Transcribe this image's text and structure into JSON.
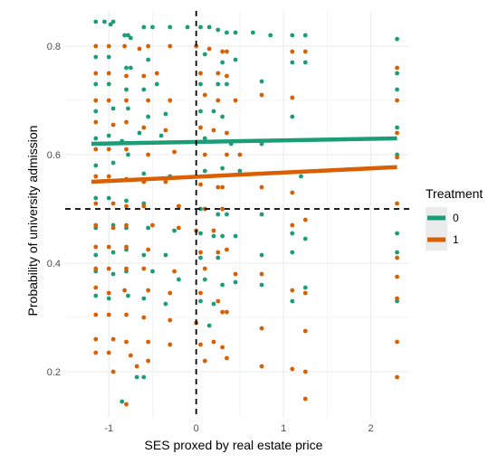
{
  "chart_data": {
    "type": "scatter",
    "xlabel": "SES proxed by real estate price",
    "ylabel": "Probability of university admission",
    "xlim": [
      -1.5,
      2.45
    ],
    "ylim": [
      0.115,
      0.865
    ],
    "x_ticks": [
      -1,
      0,
      1,
      2
    ],
    "x_tick_labels": [
      "-1",
      "0",
      "1",
      "2"
    ],
    "y_ticks": [
      0.2,
      0.4,
      0.6,
      0.8
    ],
    "y_tick_labels": [
      "0.2",
      "0.4",
      "0.6",
      "0.8"
    ],
    "grid": true,
    "reference_lines": {
      "vertical_x": 0,
      "horizontal_y": 0.5,
      "style": "dashed"
    },
    "legend": {
      "title": "Treatment",
      "position": "right",
      "entries": [
        "0",
        "1"
      ]
    },
    "series": [
      {
        "name": "0",
        "color": "#1b9e77",
        "points": [
          [
            -1.15,
            0.845
          ],
          [
            -1.05,
            0.845
          ],
          [
            -0.98,
            0.84
          ],
          [
            -0.95,
            0.845
          ],
          [
            -0.82,
            0.82
          ],
          [
            -0.78,
            0.82
          ],
          [
            -0.75,
            0.815
          ],
          [
            -0.6,
            0.835
          ],
          [
            -0.5,
            0.835
          ],
          [
            -0.3,
            0.835
          ],
          [
            -0.1,
            0.835
          ],
          [
            0.05,
            0.835
          ],
          [
            0.15,
            0.835
          ],
          [
            0.25,
            0.83
          ],
          [
            0.35,
            0.825
          ],
          [
            0.45,
            0.825
          ],
          [
            0.65,
            0.825
          ],
          [
            0.85,
            0.82
          ],
          [
            1.1,
            0.82
          ],
          [
            1.25,
            0.82
          ],
          [
            2.3,
            0.813
          ],
          [
            -1.15,
            0.78
          ],
          [
            -1.0,
            0.78
          ],
          [
            -0.8,
            0.76
          ],
          [
            -0.75,
            0.76
          ],
          [
            -0.55,
            0.775
          ],
          [
            0.1,
            0.785
          ],
          [
            0.3,
            0.77
          ],
          [
            0.45,
            0.775
          ],
          [
            1.1,
            0.77
          ],
          [
            1.25,
            0.77
          ],
          [
            2.3,
            0.75
          ],
          [
            -1.15,
            0.73
          ],
          [
            -1.0,
            0.73
          ],
          [
            -0.8,
            0.72
          ],
          [
            -0.6,
            0.72
          ],
          [
            -0.45,
            0.73
          ],
          [
            0.05,
            0.73
          ],
          [
            0.25,
            0.73
          ],
          [
            0.35,
            0.73
          ],
          [
            0.75,
            0.735
          ],
          [
            2.3,
            0.72
          ],
          [
            -1.15,
            0.68
          ],
          [
            -0.95,
            0.685
          ],
          [
            -0.78,
            0.685
          ],
          [
            -0.55,
            0.67
          ],
          [
            -0.35,
            0.675
          ],
          [
            0.05,
            0.68
          ],
          [
            0.2,
            0.68
          ],
          [
            0.3,
            0.67
          ],
          [
            1.1,
            0.67
          ],
          [
            2.3,
            0.65
          ],
          [
            -1.15,
            0.63
          ],
          [
            -1.0,
            0.635
          ],
          [
            -0.85,
            0.625
          ],
          [
            -0.65,
            0.64
          ],
          [
            -0.4,
            0.635
          ],
          [
            0.1,
            0.63
          ],
          [
            0.4,
            0.62
          ],
          [
            0.75,
            0.62
          ],
          [
            2.3,
            0.6
          ],
          [
            -1.15,
            0.58
          ],
          [
            -0.95,
            0.585
          ],
          [
            -0.78,
            0.6
          ],
          [
            -0.6,
            0.565
          ],
          [
            -0.3,
            0.56
          ],
          [
            0.1,
            0.57
          ],
          [
            0.3,
            0.575
          ],
          [
            0.5,
            0.57
          ],
          [
            1.2,
            0.56
          ],
          [
            -1.15,
            0.52
          ],
          [
            -1.0,
            0.52
          ],
          [
            -0.8,
            0.515
          ],
          [
            -0.6,
            0.51
          ],
          [
            -0.2,
            0.505
          ],
          [
            0.05,
            0.5
          ],
          [
            0.25,
            0.49
          ],
          [
            0.35,
            0.49
          ],
          [
            0.75,
            0.49
          ],
          [
            2.3,
            0.455
          ],
          [
            -1.15,
            0.465
          ],
          [
            -0.95,
            0.47
          ],
          [
            -0.8,
            0.465
          ],
          [
            -0.55,
            0.465
          ],
          [
            -0.25,
            0.46
          ],
          [
            0.05,
            0.455
          ],
          [
            0.2,
            0.45
          ],
          [
            0.3,
            0.45
          ],
          [
            0.45,
            0.45
          ],
          [
            1.1,
            0.455
          ],
          [
            1.25,
            0.445
          ],
          [
            2.3,
            0.42
          ],
          [
            -1.15,
            0.415
          ],
          [
            -0.95,
            0.42
          ],
          [
            -0.8,
            0.425
          ],
          [
            -0.6,
            0.415
          ],
          [
            -0.35,
            0.415
          ],
          [
            0.05,
            0.41
          ],
          [
            0.25,
            0.41
          ],
          [
            0.75,
            0.415
          ],
          [
            1.1,
            0.42
          ],
          [
            -1.15,
            0.385
          ],
          [
            -0.95,
            0.38
          ],
          [
            -0.8,
            0.385
          ],
          [
            -0.5,
            0.385
          ],
          [
            -0.2,
            0.37
          ],
          [
            0.1,
            0.37
          ],
          [
            0.3,
            0.36
          ],
          [
            0.45,
            0.365
          ],
          [
            0.75,
            0.36
          ],
          [
            1.25,
            0.355
          ],
          [
            -1.15,
            0.34
          ],
          [
            -1.0,
            0.335
          ],
          [
            -0.78,
            0.34
          ],
          [
            -0.6,
            0.335
          ],
          [
            -0.35,
            0.325
          ],
          [
            0.05,
            0.33
          ],
          [
            0.2,
            0.325
          ],
          [
            1.1,
            0.33
          ],
          [
            2.3,
            0.33
          ],
          [
            -0.85,
            0.145
          ],
          [
            -0.68,
            0.19
          ],
          [
            -0.6,
            0.19
          ],
          [
            0.15,
            0.285
          ]
        ]
      },
      {
        "name": "1",
        "color": "#d95f02",
        "points": [
          [
            -1.15,
            0.8
          ],
          [
            -1.0,
            0.8
          ],
          [
            -0.82,
            0.8
          ],
          [
            -0.65,
            0.795
          ],
          [
            -0.55,
            0.8
          ],
          [
            -0.3,
            0.8
          ],
          [
            0.0,
            0.8
          ],
          [
            0.15,
            0.795
          ],
          [
            0.3,
            0.79
          ],
          [
            0.35,
            0.79
          ],
          [
            1.1,
            0.79
          ],
          [
            1.25,
            0.79
          ],
          [
            -1.15,
            0.75
          ],
          [
            -1.0,
            0.75
          ],
          [
            -0.8,
            0.745
          ],
          [
            -0.6,
            0.745
          ],
          [
            -0.45,
            0.75
          ],
          [
            0.05,
            0.75
          ],
          [
            0.25,
            0.75
          ],
          [
            0.35,
            0.745
          ],
          [
            2.3,
            0.76
          ],
          [
            -1.15,
            0.7
          ],
          [
            -1.0,
            0.7
          ],
          [
            -0.8,
            0.7
          ],
          [
            -0.55,
            0.7
          ],
          [
            -0.3,
            0.7
          ],
          [
            0.1,
            0.71
          ],
          [
            0.25,
            0.7
          ],
          [
            0.45,
            0.7
          ],
          [
            0.75,
            0.71
          ],
          [
            1.1,
            0.705
          ],
          [
            2.3,
            0.7
          ],
          [
            -1.15,
            0.66
          ],
          [
            -0.95,
            0.655
          ],
          [
            -0.8,
            0.66
          ],
          [
            -0.6,
            0.65
          ],
          [
            -0.35,
            0.645
          ],
          [
            0.05,
            0.65
          ],
          [
            0.2,
            0.645
          ],
          [
            0.35,
            0.64
          ],
          [
            2.3,
            0.64
          ],
          [
            -1.15,
            0.61
          ],
          [
            -1.0,
            0.61
          ],
          [
            -0.8,
            0.61
          ],
          [
            -0.55,
            0.6
          ],
          [
            -0.25,
            0.605
          ],
          [
            0.1,
            0.6
          ],
          [
            0.35,
            0.6
          ],
          [
            0.5,
            0.6
          ],
          [
            2.3,
            0.595
          ],
          [
            -1.15,
            0.56
          ],
          [
            -1.0,
            0.56
          ],
          [
            -0.8,
            0.555
          ],
          [
            -0.6,
            0.55
          ],
          [
            -0.35,
            0.55
          ],
          [
            0.05,
            0.545
          ],
          [
            0.25,
            0.54
          ],
          [
            0.3,
            0.54
          ],
          [
            0.75,
            0.54
          ],
          [
            1.1,
            0.53
          ],
          [
            -1.15,
            0.51
          ],
          [
            -0.95,
            0.51
          ],
          [
            -0.8,
            0.505
          ],
          [
            -0.6,
            0.505
          ],
          [
            -0.2,
            0.505
          ],
          [
            0.1,
            0.5
          ],
          [
            0.3,
            0.5
          ],
          [
            2.3,
            0.51
          ],
          [
            -1.15,
            0.47
          ],
          [
            -0.95,
            0.465
          ],
          [
            -0.8,
            0.47
          ],
          [
            -0.5,
            0.47
          ],
          [
            -0.2,
            0.465
          ],
          [
            0.0,
            0.46
          ],
          [
            0.2,
            0.46
          ],
          [
            1.1,
            0.47
          ],
          [
            1.25,
            0.48
          ],
          [
            -1.15,
            0.43
          ],
          [
            -1.0,
            0.43
          ],
          [
            -0.8,
            0.43
          ],
          [
            -0.55,
            0.425
          ],
          [
            0.05,
            0.42
          ],
          [
            0.25,
            0.42
          ],
          [
            0.35,
            0.425
          ],
          [
            2.3,
            0.41
          ],
          [
            -1.15,
            0.39
          ],
          [
            -1.0,
            0.39
          ],
          [
            -0.8,
            0.39
          ],
          [
            -0.6,
            0.39
          ],
          [
            -0.25,
            0.385
          ],
          [
            0.1,
            0.39
          ],
          [
            0.45,
            0.38
          ],
          [
            0.75,
            0.38
          ],
          [
            2.3,
            0.375
          ],
          [
            -1.15,
            0.355
          ],
          [
            -1.0,
            0.345
          ],
          [
            -0.82,
            0.35
          ],
          [
            -0.55,
            0.35
          ],
          [
            -0.3,
            0.345
          ],
          [
            0.05,
            0.345
          ],
          [
            0.25,
            0.33
          ],
          [
            1.1,
            0.35
          ],
          [
            1.25,
            0.345
          ],
          [
            2.3,
            0.335
          ],
          [
            -1.15,
            0.305
          ],
          [
            -1.0,
            0.305
          ],
          [
            -0.8,
            0.305
          ],
          [
            -0.6,
            0.3
          ],
          [
            -0.3,
            0.295
          ],
          [
            0.0,
            0.29
          ],
          [
            0.3,
            0.31
          ],
          [
            0.35,
            0.31
          ],
          [
            -1.15,
            0.26
          ],
          [
            -0.95,
            0.26
          ],
          [
            -0.8,
            0.255
          ],
          [
            -0.55,
            0.255
          ],
          [
            -0.3,
            0.25
          ],
          [
            0.05,
            0.25
          ],
          [
            0.2,
            0.255
          ],
          [
            0.3,
            0.245
          ],
          [
            0.75,
            0.28
          ],
          [
            1.25,
            0.275
          ],
          [
            -1.15,
            0.235
          ],
          [
            -1.0,
            0.235
          ],
          [
            -0.75,
            0.23
          ],
          [
            -0.55,
            0.22
          ],
          [
            0.1,
            0.22
          ],
          [
            0.35,
            0.225
          ],
          [
            0.75,
            0.21
          ],
          [
            1.1,
            0.205
          ],
          [
            1.25,
            0.2
          ],
          [
            2.3,
            0.255
          ],
          [
            -0.95,
            0.2
          ],
          [
            -0.68,
            0.21
          ],
          [
            -0.8,
            0.14
          ],
          [
            1.25,
            0.15
          ],
          [
            2.3,
            0.19
          ]
        ]
      }
    ],
    "fit_lines": [
      {
        "series": "0",
        "color": "#1b9e77",
        "x": [
          -1.2,
          2.3
        ],
        "y": [
          0.62,
          0.63
        ]
      },
      {
        "series": "1",
        "color": "#d95f02",
        "x": [
          -1.2,
          2.3
        ],
        "y": [
          0.55,
          0.577
        ]
      }
    ]
  }
}
